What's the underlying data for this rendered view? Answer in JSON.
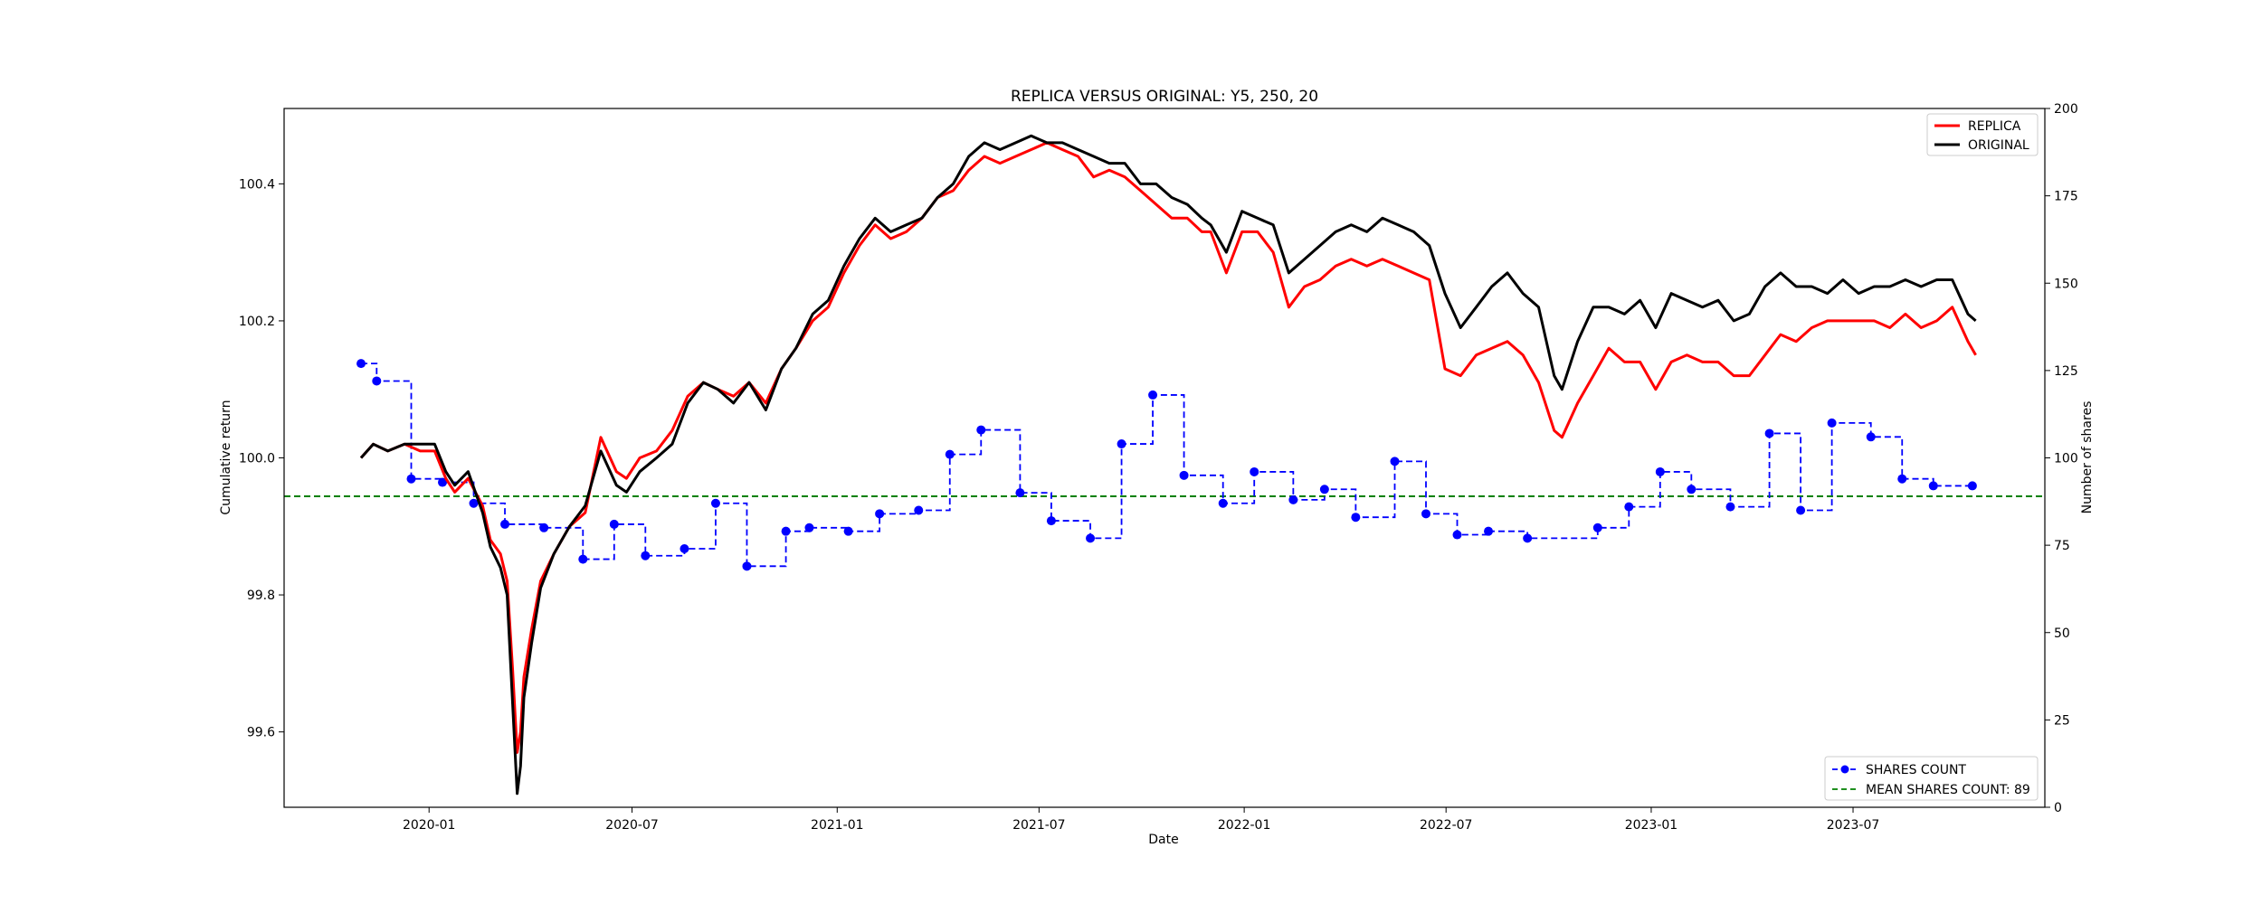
{
  "chart_data": {
    "type": "line",
    "title": "REPLICA VERSUS ORIGINAL: Y5, 250, 20",
    "xlabel": "Date",
    "ylabel": "Cumulative return",
    "y2label": "Number of shares",
    "xlim": [
      "2019-08-24",
      "2023-12-20"
    ],
    "ylim": [
      99.49,
      100.51
    ],
    "y2lim": [
      0,
      200
    ],
    "x_ticks": [
      "2020-01",
      "2020-07",
      "2021-01",
      "2021-07",
      "2022-01",
      "2022-07",
      "2023-01",
      "2023-07"
    ],
    "y_ticks": [
      "99.6",
      "99.8",
      "100.0",
      "100.2",
      "100.4"
    ],
    "y2_ticks": [
      "0",
      "25",
      "50",
      "75",
      "100",
      "125",
      "150",
      "175",
      "200"
    ],
    "grid": false,
    "legend_upper": {
      "placement": "top-right",
      "entries": [
        "REPLICA",
        "ORIGINAL"
      ]
    },
    "legend_lower": {
      "placement": "bottom-right",
      "entries": [
        "SHARES COUNT",
        "MEAN SHARES COUNT: 89"
      ]
    },
    "colors": {
      "replica": "#ff0000",
      "original": "#000000",
      "shares": "#0000ff",
      "mean": "#008000"
    },
    "series": [
      {
        "name": "REPLICA",
        "axis": "left",
        "x": [
          "2019-11-01",
          "2019-11-12",
          "2019-11-25",
          "2019-12-10",
          "2019-12-24",
          "2020-01-06",
          "2020-01-16",
          "2020-01-24",
          "2020-02-05",
          "2020-02-18",
          "2020-02-25",
          "2020-03-05",
          "2020-03-11",
          "2020-03-16",
          "2020-03-20",
          "2020-03-23",
          "2020-03-26",
          "2020-04-02",
          "2020-04-10",
          "2020-04-22",
          "2020-05-06",
          "2020-05-20",
          "2020-06-03",
          "2020-06-17",
          "2020-06-26",
          "2020-07-08",
          "2020-07-23",
          "2020-08-06",
          "2020-08-20",
          "2020-09-03",
          "2020-09-16",
          "2020-09-30",
          "2020-10-14",
          "2020-10-29",
          "2020-11-12",
          "2020-11-25",
          "2020-12-10",
          "2020-12-24",
          "2021-01-07",
          "2021-01-21",
          "2021-02-04",
          "2021-02-18",
          "2021-03-04",
          "2021-03-18",
          "2021-04-01",
          "2021-04-15",
          "2021-04-29",
          "2021-05-13",
          "2021-05-27",
          "2021-06-10",
          "2021-06-24",
          "2021-07-08",
          "2021-07-22",
          "2021-08-05",
          "2021-08-19",
          "2021-09-02",
          "2021-09-16",
          "2021-09-30",
          "2021-10-14",
          "2021-10-28",
          "2021-11-11",
          "2021-11-24",
          "2021-12-02",
          "2021-12-16",
          "2021-12-30",
          "2022-01-13",
          "2022-01-27",
          "2022-02-10",
          "2022-02-24",
          "2022-03-10",
          "2022-03-24",
          "2022-04-07",
          "2022-04-21",
          "2022-05-05",
          "2022-05-19",
          "2022-06-02",
          "2022-06-16",
          "2022-06-30",
          "2022-07-14",
          "2022-07-28",
          "2022-08-11",
          "2022-08-25",
          "2022-09-08",
          "2022-09-22",
          "2022-10-06",
          "2022-10-13",
          "2022-10-27",
          "2022-11-10",
          "2022-11-24",
          "2022-12-08",
          "2022-12-22",
          "2023-01-05",
          "2023-01-19",
          "2023-02-02",
          "2023-02-16",
          "2023-03-02",
          "2023-03-16",
          "2023-03-30",
          "2023-04-13",
          "2023-04-27",
          "2023-05-11",
          "2023-05-25",
          "2023-06-08",
          "2023-06-22",
          "2023-07-06",
          "2023-07-20",
          "2023-08-03",
          "2023-08-17",
          "2023-08-31",
          "2023-09-14",
          "2023-09-28",
          "2023-10-12",
          "2023-10-19"
        ],
        "values": [
          100.0,
          100.02,
          100.01,
          100.02,
          100.01,
          100.01,
          99.97,
          99.95,
          99.97,
          99.93,
          99.88,
          99.86,
          99.82,
          99.69,
          99.57,
          99.6,
          99.68,
          99.75,
          99.82,
          99.86,
          99.9,
          99.92,
          100.03,
          99.98,
          99.97,
          100.0,
          100.01,
          100.04,
          100.09,
          100.11,
          100.1,
          100.09,
          100.11,
          100.08,
          100.13,
          100.16,
          100.2,
          100.22,
          100.27,
          100.31,
          100.34,
          100.32,
          100.33,
          100.35,
          100.38,
          100.39,
          100.42,
          100.44,
          100.43,
          100.44,
          100.45,
          100.46,
          100.45,
          100.44,
          100.41,
          100.42,
          100.41,
          100.39,
          100.37,
          100.35,
          100.35,
          100.33,
          100.33,
          100.27,
          100.33,
          100.33,
          100.3,
          100.22,
          100.25,
          100.26,
          100.28,
          100.29,
          100.28,
          100.29,
          100.28,
          100.27,
          100.26,
          100.13,
          100.12,
          100.15,
          100.16,
          100.17,
          100.15,
          100.11,
          100.04,
          100.03,
          100.08,
          100.12,
          100.16,
          100.14,
          100.14,
          100.1,
          100.14,
          100.15,
          100.14,
          100.14,
          100.12,
          100.12,
          100.15,
          100.18,
          100.17,
          100.19,
          100.2,
          100.2,
          100.2,
          100.2,
          100.19,
          100.21,
          100.19,
          100.2,
          100.22,
          100.17,
          100.15
        ]
      },
      {
        "name": "ORIGINAL",
        "axis": "left",
        "x": [
          "2019-11-01",
          "2019-11-12",
          "2019-11-25",
          "2019-12-10",
          "2019-12-24",
          "2020-01-06",
          "2020-01-16",
          "2020-01-24",
          "2020-02-05",
          "2020-02-18",
          "2020-02-25",
          "2020-03-05",
          "2020-03-11",
          "2020-03-16",
          "2020-03-20",
          "2020-03-23",
          "2020-03-26",
          "2020-04-02",
          "2020-04-10",
          "2020-04-22",
          "2020-05-06",
          "2020-05-20",
          "2020-06-03",
          "2020-06-17",
          "2020-06-26",
          "2020-07-08",
          "2020-07-23",
          "2020-08-06",
          "2020-08-20",
          "2020-09-03",
          "2020-09-16",
          "2020-09-30",
          "2020-10-14",
          "2020-10-29",
          "2020-11-12",
          "2020-11-25",
          "2020-12-10",
          "2020-12-24",
          "2021-01-07",
          "2021-01-21",
          "2021-02-04",
          "2021-02-18",
          "2021-03-04",
          "2021-03-18",
          "2021-04-01",
          "2021-04-15",
          "2021-04-29",
          "2021-05-13",
          "2021-05-27",
          "2021-06-10",
          "2021-06-24",
          "2021-07-08",
          "2021-07-22",
          "2021-08-05",
          "2021-08-19",
          "2021-09-02",
          "2021-09-16",
          "2021-09-30",
          "2021-10-14",
          "2021-10-28",
          "2021-11-11",
          "2021-11-24",
          "2021-12-02",
          "2021-12-16",
          "2021-12-30",
          "2022-01-13",
          "2022-01-27",
          "2022-02-10",
          "2022-02-24",
          "2022-03-10",
          "2022-03-24",
          "2022-04-07",
          "2022-04-21",
          "2022-05-05",
          "2022-05-19",
          "2022-06-02",
          "2022-06-16",
          "2022-06-30",
          "2022-07-14",
          "2022-07-28",
          "2022-08-11",
          "2022-08-25",
          "2022-09-08",
          "2022-09-22",
          "2022-10-06",
          "2022-10-13",
          "2022-10-27",
          "2022-11-10",
          "2022-11-24",
          "2022-12-08",
          "2022-12-22",
          "2023-01-05",
          "2023-01-19",
          "2023-02-02",
          "2023-02-16",
          "2023-03-02",
          "2023-03-16",
          "2023-03-30",
          "2023-04-13",
          "2023-04-27",
          "2023-05-11",
          "2023-05-25",
          "2023-06-08",
          "2023-06-22",
          "2023-07-06",
          "2023-07-20",
          "2023-08-03",
          "2023-08-17",
          "2023-08-31",
          "2023-09-14",
          "2023-09-28",
          "2023-10-12",
          "2023-10-19"
        ],
        "values": [
          100.0,
          100.02,
          100.01,
          100.02,
          100.02,
          100.02,
          99.98,
          99.96,
          99.98,
          99.92,
          99.87,
          99.84,
          99.8,
          99.64,
          99.51,
          99.55,
          99.65,
          99.73,
          99.81,
          99.86,
          99.9,
          99.93,
          100.01,
          99.96,
          99.95,
          99.98,
          100.0,
          100.02,
          100.08,
          100.11,
          100.1,
          100.08,
          100.11,
          100.07,
          100.13,
          100.16,
          100.21,
          100.23,
          100.28,
          100.32,
          100.35,
          100.33,
          100.34,
          100.35,
          100.38,
          100.4,
          100.44,
          100.46,
          100.45,
          100.46,
          100.47,
          100.46,
          100.46,
          100.45,
          100.44,
          100.43,
          100.43,
          100.4,
          100.4,
          100.38,
          100.37,
          100.35,
          100.34,
          100.3,
          100.36,
          100.35,
          100.34,
          100.27,
          100.29,
          100.31,
          100.33,
          100.34,
          100.33,
          100.35,
          100.34,
          100.33,
          100.31,
          100.24,
          100.19,
          100.22,
          100.25,
          100.27,
          100.24,
          100.22,
          100.12,
          100.1,
          100.17,
          100.22,
          100.22,
          100.21,
          100.23,
          100.19,
          100.24,
          100.23,
          100.22,
          100.23,
          100.2,
          100.21,
          100.25,
          100.27,
          100.25,
          100.25,
          100.24,
          100.26,
          100.24,
          100.25,
          100.25,
          100.26,
          100.25,
          100.26,
          100.26,
          100.21,
          100.2
        ]
      },
      {
        "name": "SHARES COUNT",
        "axis": "right",
        "style": "step-post dashed with circle markers",
        "x": [
          "2019-11-01",
          "2019-11-15",
          "2019-12-16",
          "2020-01-13",
          "2020-02-10",
          "2020-03-09",
          "2020-04-13",
          "2020-05-18",
          "2020-06-15",
          "2020-07-13",
          "2020-08-17",
          "2020-09-14",
          "2020-10-12",
          "2020-11-16",
          "2020-12-07",
          "2021-01-11",
          "2021-02-08",
          "2021-03-15",
          "2021-04-12",
          "2021-05-10",
          "2021-06-14",
          "2021-07-12",
          "2021-08-16",
          "2021-09-13",
          "2021-10-11",
          "2021-11-08",
          "2021-12-13",
          "2022-01-10",
          "2022-02-14",
          "2022-03-14",
          "2022-04-11",
          "2022-05-16",
          "2022-06-13",
          "2022-07-11",
          "2022-08-08",
          "2022-09-12",
          "2022-11-14",
          "2022-12-12",
          "2023-01-09",
          "2023-02-06",
          "2023-03-13",
          "2023-04-17",
          "2023-05-15",
          "2023-06-12",
          "2023-07-17",
          "2023-08-14",
          "2023-09-11",
          "2023-10-16"
        ],
        "values": [
          127,
          122,
          94,
          93,
          87,
          81,
          80,
          71,
          81,
          72,
          74,
          87,
          69,
          79,
          80,
          79,
          84,
          85,
          101,
          108,
          90,
          82,
          77,
          104,
          118,
          95,
          87,
          96,
          88,
          91,
          83,
          99,
          84,
          78,
          79,
          77,
          80,
          86,
          96,
          91,
          86,
          107,
          85,
          110,
          106,
          94,
          92,
          92
        ]
      },
      {
        "name": "MEAN SHARES COUNT: 89",
        "axis": "right",
        "style": "horizontal dashed line",
        "values": [
          89
        ]
      }
    ]
  }
}
